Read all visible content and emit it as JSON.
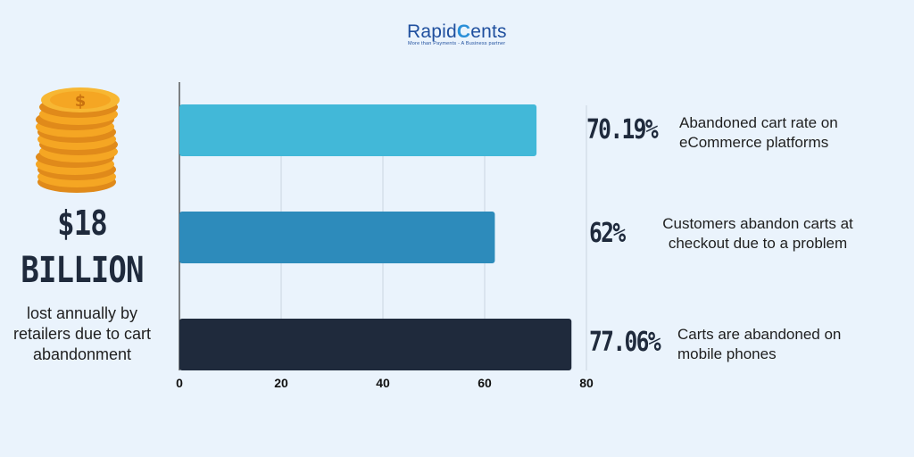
{
  "logo": {
    "prefix": "Rapid",
    "c": "C",
    "suffix": "ents",
    "tagline": "More than Payments - A Business partner"
  },
  "left_panel": {
    "amount": "$18",
    "unit": "BILLION",
    "description": "lost annually by retailers due to cart abandonment",
    "icon": "coin-stack-icon"
  },
  "stats": [
    {
      "value": "70.19%",
      "description": "Abandoned cart rate on eCommerce platforms"
    },
    {
      "value": "62%",
      "description": "Customers abandon carts at checkout due to a problem"
    },
    {
      "value": "77.06%",
      "description": "Carts are abandoned on mobile phones"
    }
  ],
  "colors": {
    "background": "#eaf3fc",
    "bar1": "#42b8d8",
    "bar2": "#2d8bbb",
    "bar3": "#1f2a3c",
    "text_dark": "#1f2a3c"
  },
  "chart_data": {
    "type": "bar",
    "orientation": "horizontal",
    "categories": [
      "Abandoned cart rate on eCommerce platforms",
      "Customers abandon carts at checkout due to a problem",
      "Carts are abandoned on mobile phones"
    ],
    "values": [
      70.19,
      62,
      77.06
    ],
    "xlim": [
      0,
      80
    ],
    "xticks": [
      0,
      20,
      40,
      60,
      80
    ],
    "grid": true,
    "title": "",
    "xlabel": "",
    "ylabel": ""
  }
}
